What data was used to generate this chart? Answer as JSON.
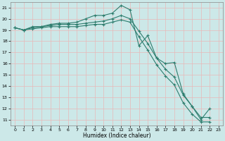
{
  "xlabel": "Humidex (Indice chaleur)",
  "xlim": [
    -0.5,
    23.5
  ],
  "ylim": [
    10.5,
    21.5
  ],
  "xticks": [
    0,
    1,
    2,
    3,
    4,
    5,
    6,
    7,
    8,
    9,
    10,
    11,
    12,
    13,
    14,
    15,
    16,
    17,
    18,
    19,
    20,
    21,
    22,
    23
  ],
  "yticks": [
    11,
    12,
    13,
    14,
    15,
    16,
    17,
    18,
    19,
    20,
    21
  ],
  "bg_color": "#cce8e8",
  "grid_color": "#b0d4d4",
  "line_color": "#2e7d6e",
  "line1_x": [
    0,
    1,
    2,
    3,
    4,
    5,
    6,
    7,
    8,
    9,
    10,
    11,
    12,
    13,
    14,
    15,
    16,
    17,
    18,
    19,
    20,
    21,
    22
  ],
  "line1_y": [
    19.2,
    19.0,
    19.3,
    19.3,
    19.5,
    19.6,
    19.6,
    19.7,
    20.0,
    20.3,
    20.3,
    20.5,
    21.2,
    20.8,
    17.6,
    18.5,
    16.5,
    16.0,
    16.1,
    13.3,
    12.2,
    11.0,
    12.0
  ],
  "line2_x": [
    0,
    1,
    2,
    3,
    4,
    5,
    6,
    7,
    8,
    9,
    10,
    11,
    12,
    13,
    14,
    15,
    16,
    17,
    18,
    19,
    20,
    21,
    22
  ],
  "line2_y": [
    19.2,
    19.0,
    19.2,
    19.3,
    19.4,
    19.5,
    19.5,
    19.5,
    19.6,
    19.7,
    19.8,
    20.0,
    20.3,
    20.0,
    18.9,
    17.8,
    16.5,
    15.5,
    14.8,
    13.2,
    12.2,
    11.2,
    11.2
  ],
  "line3_x": [
    0,
    1,
    2,
    3,
    4,
    5,
    6,
    7,
    8,
    9,
    10,
    11,
    12,
    13,
    14,
    15,
    16,
    17,
    18,
    19,
    20,
    21,
    22
  ],
  "line3_y": [
    19.2,
    19.0,
    19.1,
    19.2,
    19.3,
    19.3,
    19.3,
    19.3,
    19.4,
    19.5,
    19.5,
    19.7,
    19.9,
    19.7,
    18.4,
    17.2,
    15.9,
    14.9,
    14.1,
    12.5,
    11.5,
    10.8,
    10.8
  ]
}
